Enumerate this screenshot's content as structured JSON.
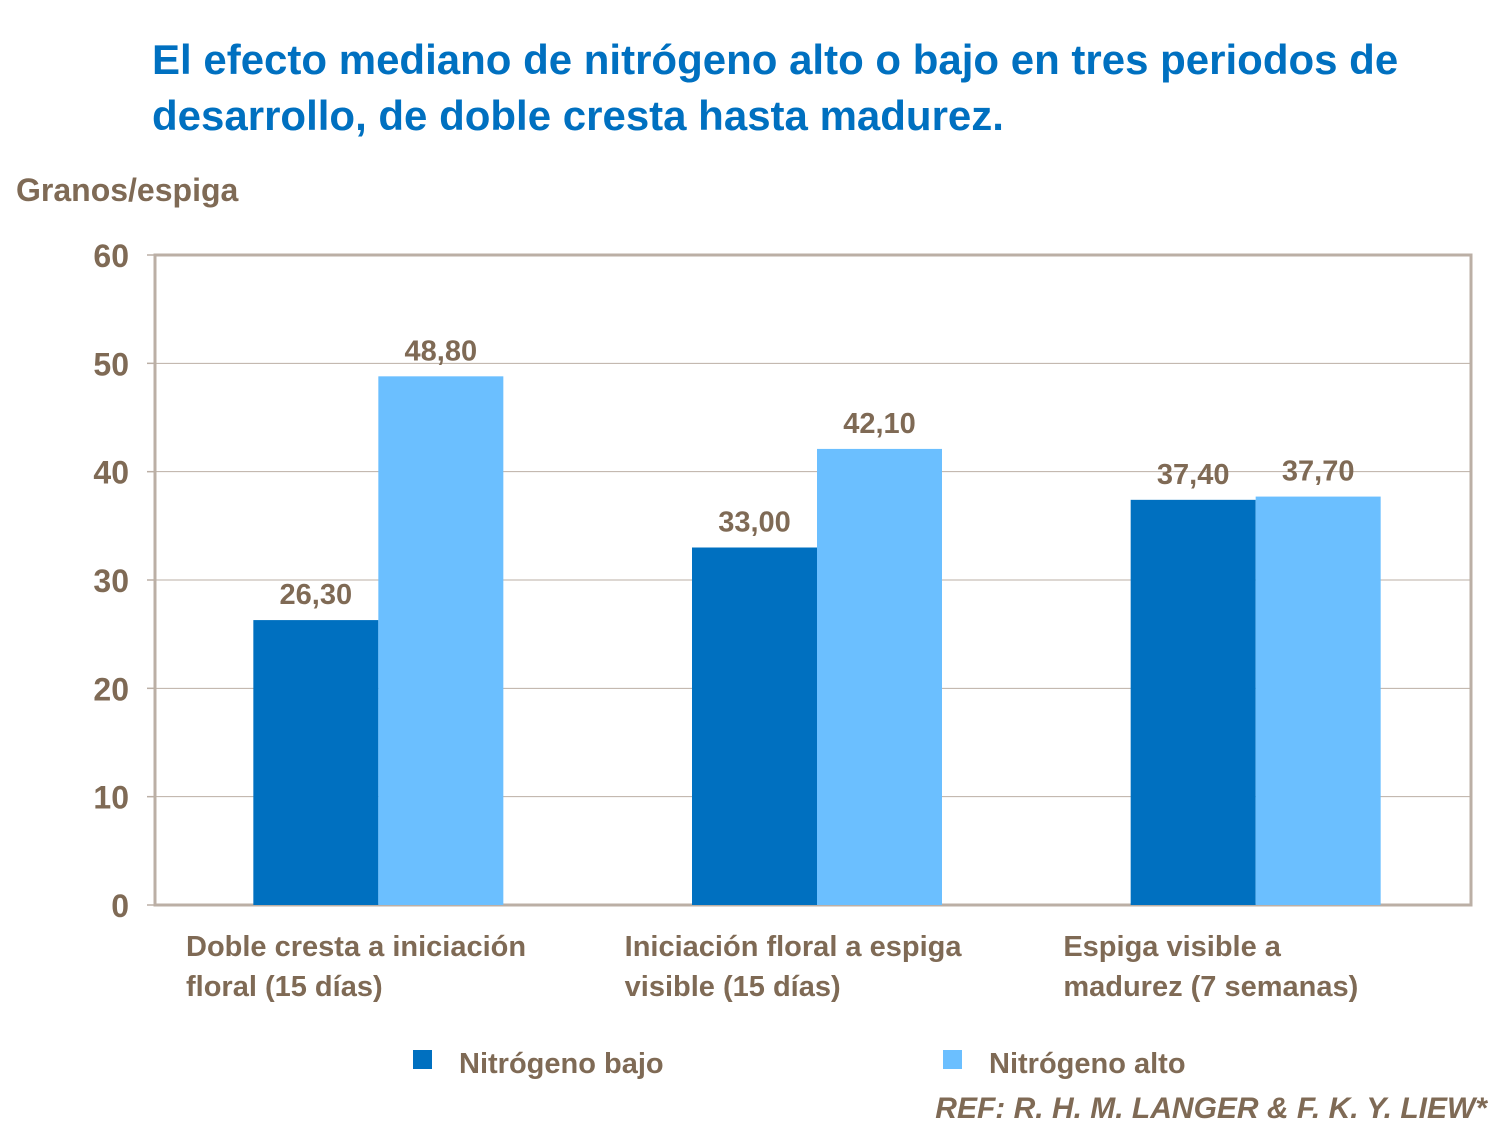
{
  "chart_data": {
    "type": "bar",
    "title": "El efecto mediano de nitrógeno alto o bajo en tres periodos de desarrollo, de doble cresta hasta madurez.",
    "ylabel": "Granos/espiga",
    "xlabel": "",
    "ylim": [
      0,
      60
    ],
    "yticks": [
      0,
      10,
      20,
      30,
      40,
      50,
      60
    ],
    "grid": true,
    "legend_position": "bottom",
    "categories": [
      [
        "Doble cresta a iniciación",
        "floral (15 días)"
      ],
      [
        "Iniciación floral a espiga",
        "visible (15 días)"
      ],
      [
        "Espiga visible a",
        "madurez  (7 semanas)"
      ]
    ],
    "series": [
      {
        "name": "Nitrógeno bajo",
        "color": "#0070C0",
        "values": [
          26.3,
          33.0,
          37.4
        ],
        "labels": [
          "26,30",
          "33,00",
          "37,40"
        ]
      },
      {
        "name": "Nitrógeno alto",
        "color": "#6BBFFF",
        "values": [
          48.8,
          42.1,
          37.7
        ],
        "labels": [
          "48,80",
          "42,10",
          "37,70"
        ]
      }
    ]
  },
  "reference": "REF: R. H. M. LANGER & F. K. Y. LIEW*"
}
